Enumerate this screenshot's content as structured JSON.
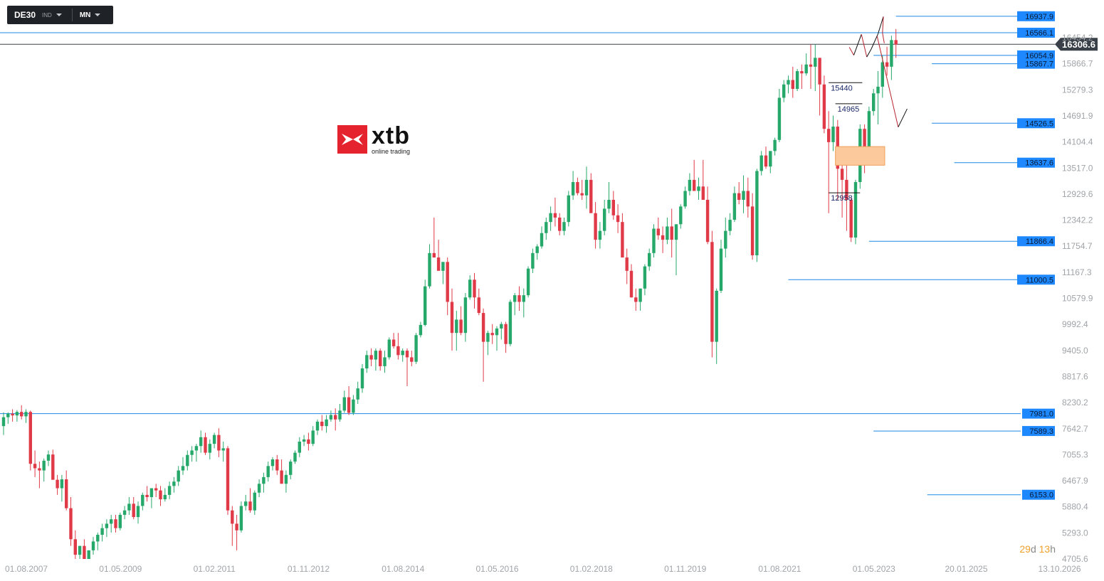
{
  "toolbar": {
    "symbol": "DE30",
    "instrument_type": "IND",
    "interval": "MN"
  },
  "logo": {
    "word": "xtb",
    "subtitle": "online trading"
  },
  "timer": {
    "days": "29",
    "days_unit": "d",
    "hours": "13",
    "hours_unit": "h"
  },
  "colors": {
    "up": "#26a86a",
    "down": "#e03a48",
    "level_line": "#1e88e5",
    "label_bg": "#1e88ff",
    "current_bg": "#3a4048",
    "zone": "#fbc99b"
  },
  "chart_data": {
    "type": "candlestick",
    "title": "",
    "xlabel": "",
    "ylabel": "",
    "ylim": [
      4705.6,
      16937.9
    ],
    "y_ticks": [
      "16454.2",
      "15866.7",
      "15279.3",
      "14691.9",
      "14104.4",
      "13517.0",
      "12929.6",
      "12342.2",
      "11754.7",
      "11167.3",
      "10579.9",
      "9992.4",
      "9405.0",
      "8817.6",
      "8230.2",
      "7642.7",
      "7055.3",
      "6467.9",
      "5880.4",
      "5293.0",
      "4705.6"
    ],
    "x_ticks": [
      "01.08.2007",
      "01.05.2009",
      "01.02.2011",
      "01.11.2012",
      "01.08.2014",
      "01.05.2016",
      "01.02.2018",
      "01.11.2019",
      "01.08.2021",
      "01.05.2023",
      "20.01.2025",
      "13.10.2026"
    ],
    "x_tick_months": [
      0,
      21,
      42,
      63,
      84,
      105,
      126,
      147,
      168,
      189,
      209.6,
      230.4
    ],
    "current_price": "16306.6",
    "current_price_value": 16306.6,
    "levels": [
      {
        "label": "16937.9",
        "value": 16937.9,
        "x_month": 199
      },
      {
        "label": "16566.1",
        "value": 16566.1,
        "x_month": -1
      },
      {
        "label": "16054.9",
        "value": 16054.9,
        "x_month": 194
      },
      {
        "label": "15867.7",
        "value": 15867.7,
        "x_month": 207
      },
      {
        "label": "14526.5",
        "value": 14526.5,
        "x_month": 207
      },
      {
        "label": "13637.6",
        "value": 13637.6,
        "x_month": 212
      },
      {
        "label": "11866.4",
        "value": 11866.4,
        "x_month": 193
      },
      {
        "label": "11000.5",
        "value": 11000.5,
        "x_month": 175
      },
      {
        "label": "7981.0",
        "value": 7981.0,
        "x_month": -1
      },
      {
        "label": "7589.3",
        "value": 7589.3,
        "x_month": 194
      },
      {
        "label": "6153.0",
        "value": 6153.0,
        "x_month": 206
      }
    ],
    "annotations": [
      {
        "text": "15440",
        "value": 15440,
        "x1_month": 184,
        "x2_month": 191.5
      },
      {
        "text": "14965",
        "value": 14965,
        "x1_month": 185.5,
        "x2_month": 191.5
      },
      {
        "text": "12958",
        "value": 12958,
        "x1_month": 184,
        "x2_month": 191
      }
    ],
    "zone": {
      "y_top": 14000,
      "y_bottom": 13580,
      "x1_month": 185.5,
      "x2_month": 196.5
    },
    "projection_path": [
      {
        "m": 188.6,
        "v": 16240
      },
      {
        "m": 189.6,
        "v": 16060
      },
      {
        "m": 191.3,
        "v": 16530
      },
      {
        "m": 192.5,
        "v": 16020
      },
      {
        "m": 193.5,
        "v": 16200
      },
      {
        "m": 195,
        "v": 16540
      },
      {
        "m": 196.2,
        "v": 16930
      },
      {
        "m": 196,
        "v": 16560
      },
      {
        "m": 196.4,
        "v": 16330
      }
    ],
    "projection_lower": [
      {
        "m": 194.8,
        "v": 16490
      },
      {
        "m": 199.5,
        "v": 14440
      },
      {
        "m": 201.5,
        "v": 14850
      }
    ],
    "candles_ohlc": [
      [
        7700,
        8010,
        7500,
        7900
      ],
      [
        7900,
        8010,
        7750,
        7980
      ],
      [
        7980,
        8080,
        7800,
        7940
      ],
      [
        7940,
        8060,
        7800,
        8020
      ],
      [
        8020,
        8170,
        7850,
        7920
      ],
      [
        7920,
        8080,
        7770,
        8020
      ],
      [
        8020,
        8050,
        6700,
        6850
      ],
      [
        6850,
        7150,
        6550,
        6750
      ],
      [
        6750,
        6900,
        6300,
        6700
      ],
      [
        6700,
        6970,
        6450,
        6920
      ],
      [
        6920,
        7150,
        6800,
        7060
      ],
      [
        7060,
        7170,
        6500,
        6490
      ],
      [
        6490,
        6600,
        6150,
        6300
      ],
      [
        6300,
        6600,
        6000,
        6500
      ],
      [
        6500,
        6700,
        5800,
        5850
      ],
      [
        5850,
        6100,
        5000,
        5150
      ],
      [
        5150,
        5350,
        4650,
        4800
      ],
      [
        4800,
        5000,
        4705,
        5000
      ],
      [
        5000,
        5150,
        4705,
        4700
      ],
      [
        4700,
        4900,
        4705,
        4900
      ],
      [
        4900,
        5200,
        4800,
        5100
      ],
      [
        5100,
        5300,
        4900,
        5250
      ],
      [
        5250,
        5500,
        5100,
        5400
      ],
      [
        5400,
        5600,
        5200,
        5500
      ],
      [
        5500,
        5700,
        5300,
        5600
      ],
      [
        5600,
        5700,
        5300,
        5400
      ],
      [
        5400,
        5750,
        5350,
        5700
      ],
      [
        5700,
        5900,
        5600,
        5800
      ],
      [
        5800,
        6100,
        5700,
        5950
      ],
      [
        5950,
        6100,
        5600,
        5650
      ],
      [
        5650,
        6000,
        5500,
        5900
      ],
      [
        5900,
        6200,
        5800,
        6150
      ],
      [
        6150,
        6350,
        6000,
        6100
      ],
      [
        6100,
        6300,
        5850,
        6300
      ],
      [
        6300,
        6400,
        6100,
        6250
      ],
      [
        6250,
        6350,
        5900,
        6050
      ],
      [
        6050,
        6300,
        6000,
        6150
      ],
      [
        6150,
        6450,
        6050,
        6350
      ],
      [
        6350,
        6550,
        6200,
        6450
      ],
      [
        6450,
        6800,
        6350,
        6700
      ],
      [
        6700,
        7000,
        6600,
        6800
      ],
      [
        6800,
        7150,
        6700,
        7050
      ],
      [
        7050,
        7250,
        6900,
        7150
      ],
      [
        7150,
        7300,
        6900,
        7250
      ],
      [
        7250,
        7600,
        7100,
        7450
      ],
      [
        7450,
        7550,
        7050,
        7100
      ],
      [
        7100,
        7400,
        6950,
        7300
      ],
      [
        7300,
        7550,
        7200,
        7500
      ],
      [
        7500,
        7650,
        7000,
        7150
      ],
      [
        7150,
        7350,
        6900,
        7200
      ],
      [
        7200,
        7250,
        5700,
        5800
      ],
      [
        5800,
        5900,
        5000,
        5500
      ],
      [
        5500,
        5700,
        4900,
        5350
      ],
      [
        5350,
        6000,
        5300,
        5900
      ],
      [
        5900,
        6150,
        5800,
        6000
      ],
      [
        6000,
        6300,
        5750,
        5800
      ],
      [
        5800,
        6250,
        5700,
        6200
      ],
      [
        6200,
        6500,
        6100,
        6400
      ],
      [
        6400,
        6650,
        6200,
        6550
      ],
      [
        6550,
        6900,
        6450,
        6800
      ],
      [
        6800,
        7000,
        6700,
        6950
      ],
      [
        6950,
        7050,
        6600,
        6700
      ],
      [
        6700,
        6950,
        6500,
        6400
      ],
      [
        6400,
        6700,
        6200,
        6600
      ],
      [
        6600,
        6950,
        6500,
        6900
      ],
      [
        6900,
        7150,
        6850,
        7100
      ],
      [
        7100,
        7450,
        7000,
        7350
      ],
      [
        7350,
        7500,
        7250,
        7400
      ],
      [
        7400,
        7550,
        7150,
        7300
      ],
      [
        7300,
        7700,
        7250,
        7600
      ],
      [
        7600,
        7850,
        7500,
        7800
      ],
      [
        7800,
        7950,
        7600,
        7700
      ],
      [
        7700,
        7950,
        7550,
        7850
      ],
      [
        7850,
        8050,
        7800,
        7950
      ],
      [
        7950,
        8100,
        7600,
        7850
      ],
      [
        7850,
        8200,
        7800,
        8050
      ],
      [
        8050,
        8500,
        8000,
        8350
      ],
      [
        8350,
        8600,
        7950,
        8000
      ],
      [
        8000,
        8400,
        7950,
        8300
      ],
      [
        8300,
        8700,
        8200,
        8550
      ],
      [
        8550,
        9100,
        8450,
        9000
      ],
      [
        9000,
        9400,
        8900,
        9300
      ],
      [
        9300,
        9450,
        9050,
        9200
      ],
      [
        9200,
        9450,
        8950,
        9400
      ],
      [
        9400,
        9450,
        8950,
        9050
      ],
      [
        9050,
        9400,
        8900,
        9250
      ],
      [
        9250,
        9700,
        9200,
        9650
      ],
      [
        9650,
        9800,
        9450,
        9500
      ],
      [
        9500,
        9800,
        9200,
        9300
      ],
      [
        9300,
        9450,
        9150,
        9400
      ],
      [
        9400,
        9450,
        8600,
        9250
      ],
      [
        9250,
        9400,
        9050,
        9150
      ],
      [
        9150,
        9800,
        9100,
        9750
      ],
      [
        9750,
        10050,
        9700,
        9980
      ],
      [
        9980,
        11000,
        9950,
        10850
      ],
      [
        10850,
        11800,
        10800,
        11600
      ],
      [
        11600,
        12400,
        11500,
        11500
      ],
      [
        11500,
        11900,
        11300,
        11200
      ],
      [
        11200,
        11400,
        10900,
        11400
      ],
      [
        11400,
        11500,
        10200,
        10500
      ],
      [
        10500,
        10800,
        9400,
        9800
      ],
      [
        9800,
        10300,
        9400,
        10100
      ],
      [
        10100,
        10400,
        9750,
        9800
      ],
      [
        9800,
        10700,
        9600,
        10600
      ],
      [
        10600,
        11100,
        10550,
        11000
      ],
      [
        11000,
        11150,
        10350,
        10600
      ],
      [
        10600,
        10800,
        10200,
        10250
      ],
      [
        10250,
        10350,
        8700,
        9600
      ],
      [
        9600,
        9850,
        9300,
        9800
      ],
      [
        9800,
        10000,
        9550,
        9750
      ],
      [
        9750,
        9950,
        9400,
        9900
      ],
      [
        9900,
        10050,
        9650,
        10000
      ],
      [
        10000,
        10050,
        9350,
        9550
      ],
      [
        9550,
        10550,
        9500,
        10500
      ],
      [
        10500,
        10700,
        10200,
        10650
      ],
      [
        10650,
        10850,
        10300,
        10500
      ],
      [
        10500,
        10800,
        10150,
        10650
      ],
      [
        10650,
        11300,
        10600,
        11250
      ],
      [
        11250,
        11700,
        11150,
        11600
      ],
      [
        11600,
        11800,
        11450,
        11750
      ],
      [
        11750,
        12200,
        11700,
        12050
      ],
      [
        12050,
        12400,
        11900,
        12300
      ],
      [
        12300,
        12650,
        12100,
        12500
      ],
      [
        12500,
        12850,
        12200,
        12400
      ],
      [
        12400,
        12500,
        12000,
        12100
      ],
      [
        12100,
        12400,
        12000,
        12300
      ],
      [
        12300,
        13000,
        12200,
        12900
      ],
      [
        12900,
        13450,
        12800,
        13200
      ],
      [
        13200,
        13300,
        12900,
        12950
      ],
      [
        12950,
        13250,
        12800,
        12900
      ],
      [
        12900,
        13550,
        12600,
        13250
      ],
      [
        13250,
        13400,
        12800,
        12500
      ],
      [
        12500,
        12750,
        11700,
        11900
      ],
      [
        11900,
        12300,
        11700,
        12100
      ],
      [
        12100,
        12800,
        12000,
        12600
      ],
      [
        12600,
        13200,
        12500,
        12800
      ],
      [
        12800,
        13000,
        12350,
        12450
      ],
      [
        12450,
        12700,
        12050,
        12300
      ],
      [
        12300,
        12500,
        11700,
        11500
      ],
      [
        11500,
        11700,
        10900,
        11200
      ],
      [
        11200,
        11350,
        10600,
        10600
      ],
      [
        10600,
        10800,
        10300,
        10500
      ],
      [
        10500,
        10800,
        10300,
        10800
      ],
      [
        10800,
        11350,
        10650,
        11300
      ],
      [
        11300,
        11700,
        11200,
        11600
      ],
      [
        11600,
        12250,
        11500,
        12150
      ],
      [
        12150,
        12400,
        11900,
        12000
      ],
      [
        12000,
        12200,
        11600,
        11900
      ],
      [
        11900,
        12400,
        11800,
        12200
      ],
      [
        12200,
        12600,
        11500,
        11900
      ],
      [
        11900,
        12200,
        11100,
        12250
      ],
      [
        12250,
        12700,
        12150,
        12650
      ],
      [
        12650,
        13100,
        12600,
        13000
      ],
      [
        13000,
        13400,
        12900,
        13250
      ],
      [
        13250,
        13700,
        13100,
        13000
      ],
      [
        13000,
        13300,
        12800,
        13100
      ],
      [
        13100,
        13700,
        13000,
        12800
      ],
      [
        12800,
        13100,
        11800,
        11850
      ],
      [
        11850,
        12100,
        9250,
        9600
      ],
      [
        9600,
        10800,
        9100,
        10750
      ],
      [
        10750,
        11900,
        10700,
        11700
      ],
      [
        11700,
        12400,
        11500,
        12100
      ],
      [
        12100,
        12500,
        12000,
        12350
      ],
      [
        12350,
        13100,
        12300,
        12950
      ],
      [
        12950,
        13200,
        12700,
        12800
      ],
      [
        12800,
        13350,
        12500,
        13000
      ],
      [
        13000,
        13300,
        12400,
        12650
      ],
      [
        12650,
        12950,
        11450,
        11550
      ],
      [
        11550,
        13500,
        11400,
        13450
      ],
      [
        13450,
        13900,
        13350,
        13800
      ],
      [
        13800,
        14000,
        13500,
        13550
      ],
      [
        13550,
        13900,
        13400,
        13900
      ],
      [
        13900,
        14200,
        13800,
        14150
      ],
      [
        14150,
        15300,
        14100,
        15100
      ],
      [
        15100,
        15500,
        15000,
        15400
      ],
      [
        15400,
        15600,
        15200,
        15500
      ],
      [
        15500,
        15800,
        15100,
        15300
      ],
      [
        15300,
        15750,
        15250,
        15700
      ],
      [
        15700,
        15850,
        15300,
        15650
      ],
      [
        15650,
        16100,
        15600,
        15850
      ],
      [
        15850,
        16300,
        15300,
        15800
      ],
      [
        15800,
        16300,
        15250,
        16000
      ],
      [
        16000,
        16000,
        14700,
        15400
      ],
      [
        15400,
        15600,
        14300,
        14400
      ],
      [
        14400,
        14800,
        12500,
        14100
      ],
      [
        14100,
        14700,
        13900,
        14450
      ],
      [
        14450,
        14600,
        12800,
        13500
      ],
      [
        13500,
        13850,
        12400,
        13250
      ],
      [
        13250,
        13600,
        12100,
        12800
      ],
      [
        12800,
        12850,
        11850,
        11950
      ],
      [
        11950,
        13250,
        11800,
        13200
      ],
      [
        13200,
        14500,
        13050,
        14400
      ],
      [
        14400,
        14500,
        13400,
        14000
      ],
      [
        14000,
        14900,
        13950,
        14800
      ],
      [
        14800,
        15300,
        14700,
        15200
      ],
      [
        15200,
        15700,
        14500,
        15350
      ],
      [
        15350,
        16050,
        15100,
        15900
      ],
      [
        15900,
        16250,
        15600,
        15800
      ],
      [
        15800,
        16500,
        15500,
        16400
      ],
      [
        16400,
        16650,
        16000,
        16300
      ]
    ]
  }
}
